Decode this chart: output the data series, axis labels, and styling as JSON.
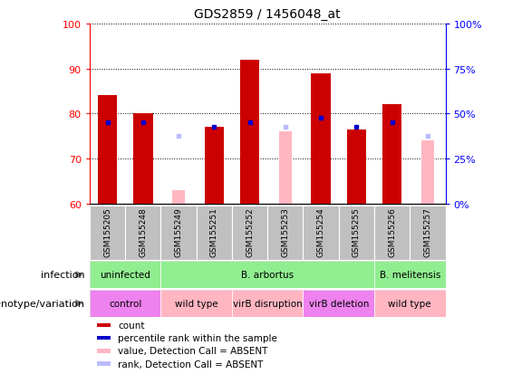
{
  "title": "GDS2859 / 1456048_at",
  "samples": [
    "GSM155205",
    "GSM155248",
    "GSM155249",
    "GSM155251",
    "GSM155252",
    "GSM155253",
    "GSM155254",
    "GSM155255",
    "GSM155256",
    "GSM155257"
  ],
  "ylim_left": [
    60,
    100
  ],
  "ylim_right": [
    0,
    100
  ],
  "yticks_left": [
    60,
    70,
    80,
    90,
    100
  ],
  "yticks_right": [
    0,
    25,
    50,
    75,
    100
  ],
  "ytick_labels_right": [
    "0%",
    "25%",
    "50%",
    "75%",
    "100%"
  ],
  "red_bars": [
    84,
    80,
    null,
    77,
    92,
    null,
    89,
    76.5,
    82,
    null
  ],
  "blue_dots": [
    78,
    78,
    null,
    77,
    78,
    null,
    79,
    77,
    78,
    null
  ],
  "pink_bars": [
    null,
    null,
    63,
    null,
    null,
    76,
    null,
    null,
    null,
    74
  ],
  "lavender_dots": [
    null,
    null,
    75,
    null,
    null,
    77,
    null,
    null,
    null,
    75
  ],
  "infection_groups": [
    {
      "label": "uninfected",
      "start": 0,
      "end": 2,
      "color": "#90EE90"
    },
    {
      "label": "B. arbortus",
      "start": 2,
      "end": 8,
      "color": "#90EE90"
    },
    {
      "label": "B. melitensis",
      "start": 8,
      "end": 10,
      "color": "#90EE90"
    }
  ],
  "genotype_groups": [
    {
      "label": "control",
      "start": 0,
      "end": 2,
      "color": "#EE82EE"
    },
    {
      "label": "wild type",
      "start": 2,
      "end": 4,
      "color": "#FFB6C1"
    },
    {
      "label": "virB disruption",
      "start": 4,
      "end": 6,
      "color": "#FFB6C1"
    },
    {
      "label": "virB deletion",
      "start": 6,
      "end": 8,
      "color": "#EE82EE"
    },
    {
      "label": "wild type",
      "start": 8,
      "end": 10,
      "color": "#FFB6C1"
    }
  ],
  "legend_items": [
    {
      "color": "#CC0000",
      "label": "count"
    },
    {
      "color": "#0000CC",
      "label": "percentile rank within the sample"
    },
    {
      "color": "#FFB6C1",
      "label": "value, Detection Call = ABSENT"
    },
    {
      "color": "#BBBBFF",
      "label": "rank, Detection Call = ABSENT"
    }
  ],
  "bar_width": 0.55,
  "bar_color": "#CC0000",
  "blue_color": "#0000CC",
  "pink_color": "#FFB6C1",
  "lavender_color": "#BBBBFF",
  "label_row_infection": "infection",
  "label_row_genotype": "genotype/variation",
  "sample_bg_color": "#C0C0C0"
}
